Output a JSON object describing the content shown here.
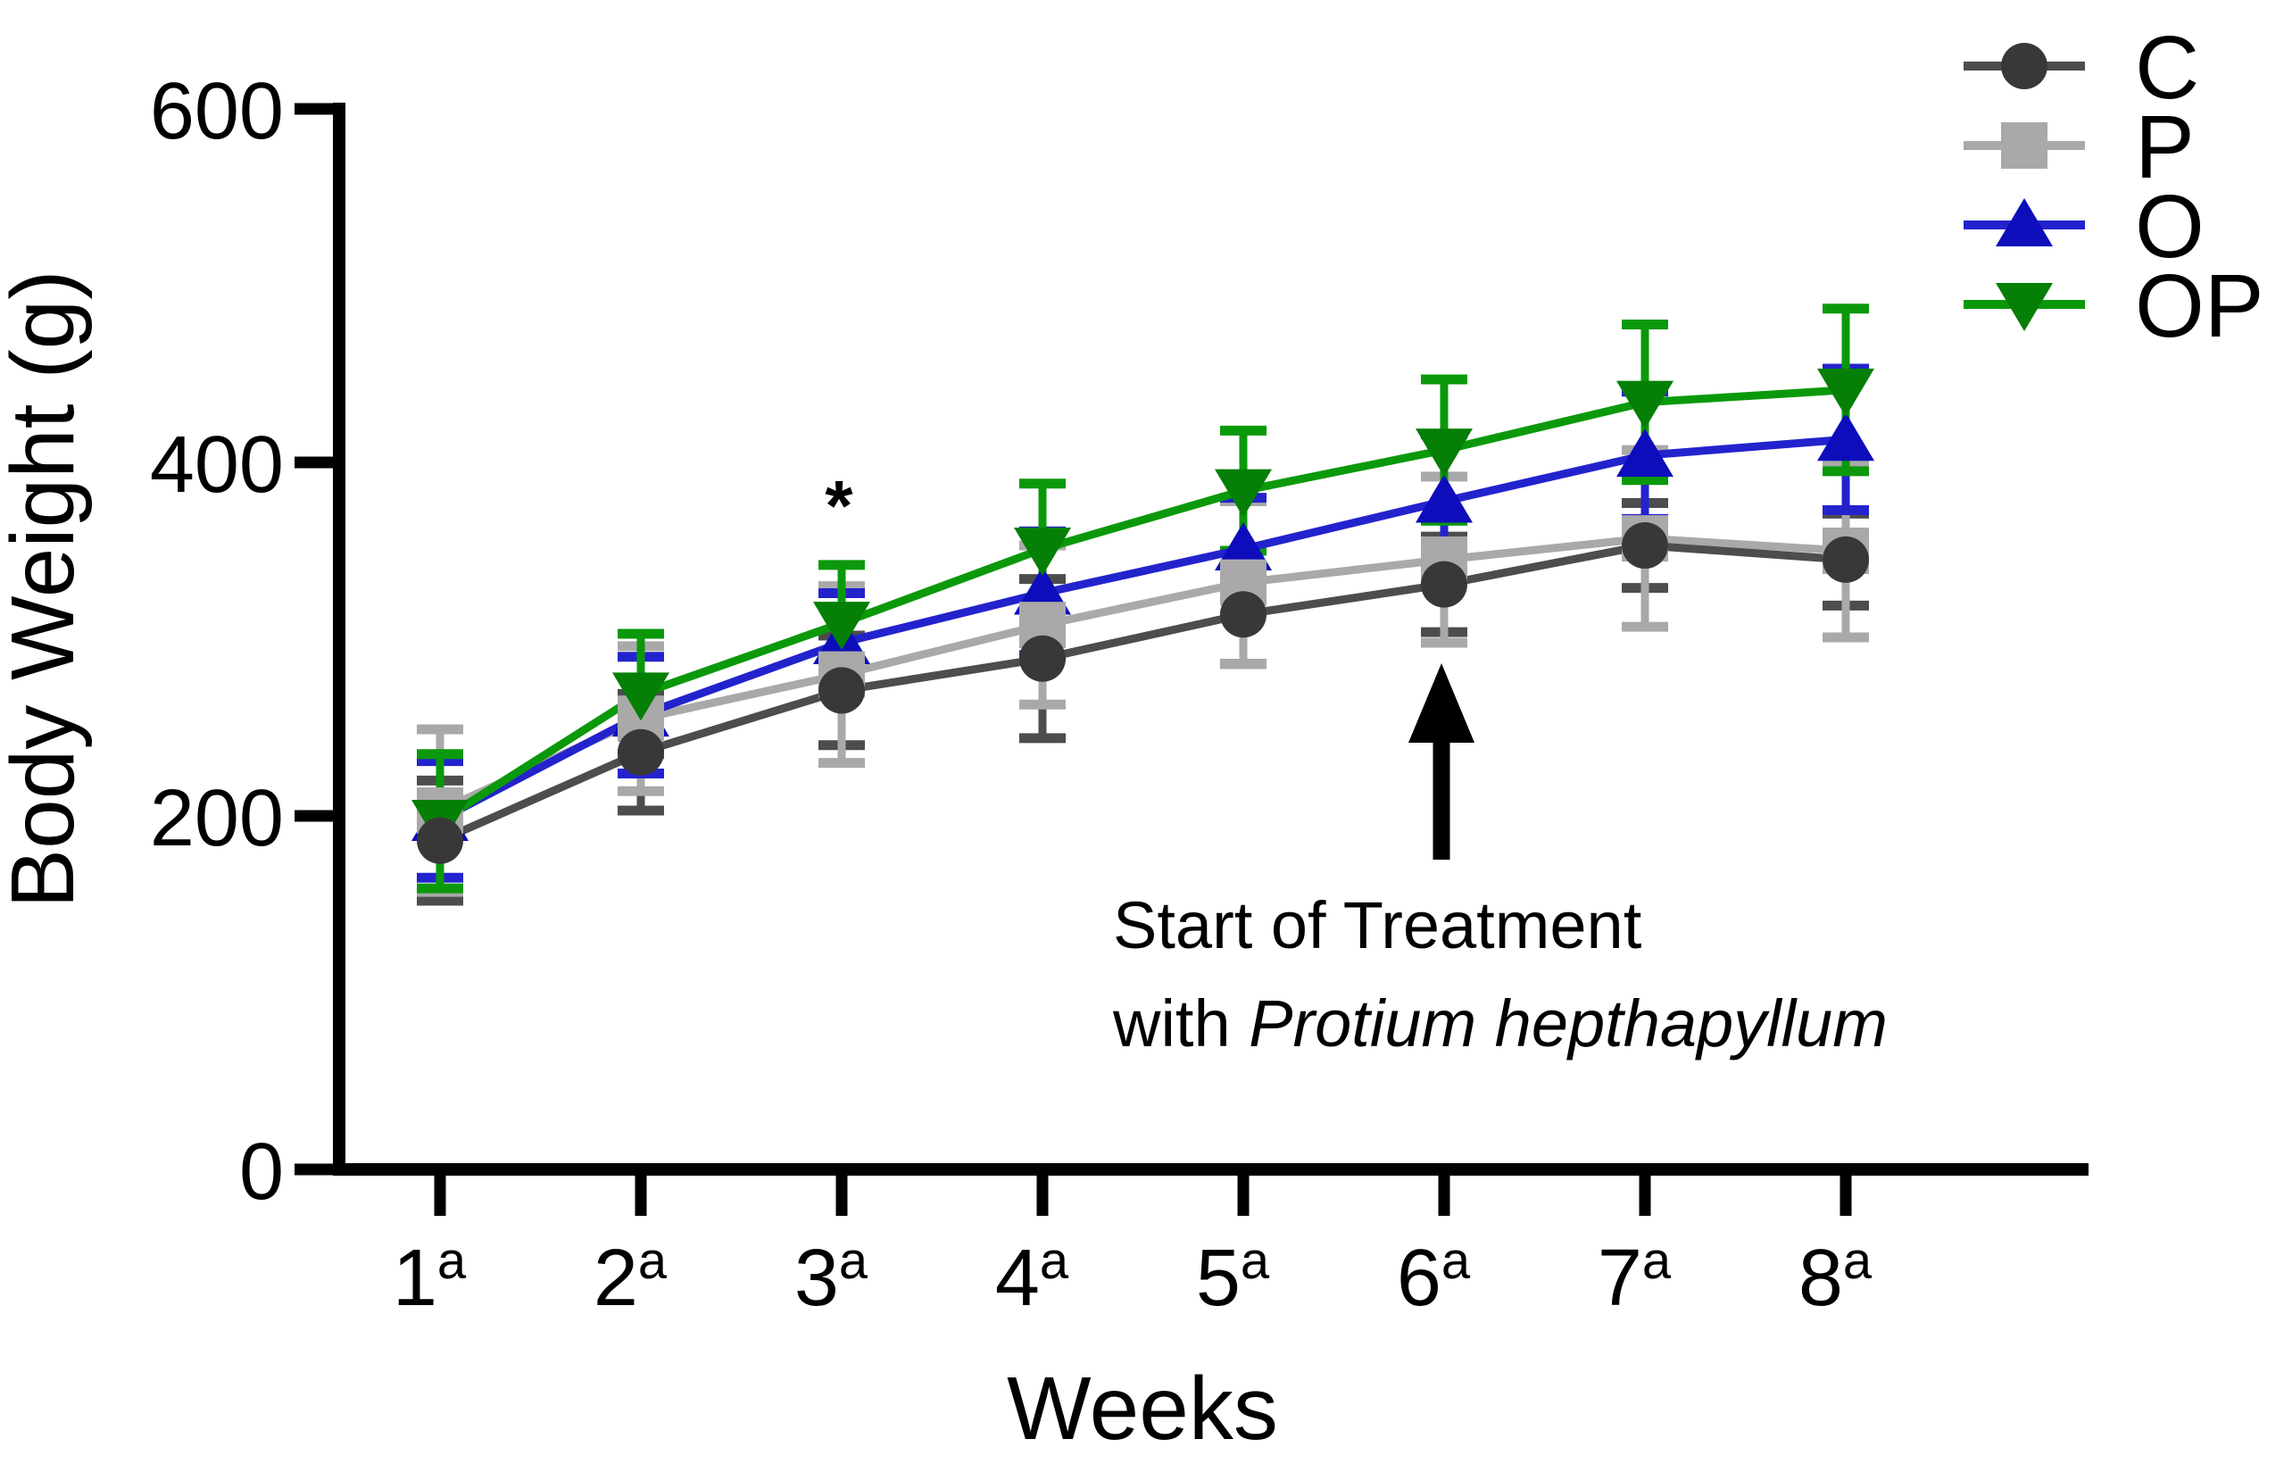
{
  "figure": {
    "background": "#ffffff",
    "axis_color": "#000000"
  },
  "y_axis": {
    "label": "Body Weight (g)",
    "tick_labels": [
      "0",
      "200",
      "400",
      "600"
    ],
    "ticks": [
      0,
      200,
      400,
      600
    ]
  },
  "x_axis": {
    "label": "Weeks",
    "tick_base": [
      "1",
      "2",
      "3",
      "4",
      "5",
      "6",
      "7",
      "8"
    ],
    "tick_superscript": "a"
  },
  "annotation": {
    "line1": "Start of Treatment",
    "line2_prefix": "with ",
    "line2_italic": "Protium hepthapyllum"
  },
  "significance": {
    "label": "*",
    "week": 3
  },
  "arrow": {
    "meaning": "start-of-treatment-arrow",
    "week": 6
  },
  "legend": {
    "entries": [
      "C",
      "P",
      "O",
      "OP"
    ]
  },
  "chart_data": {
    "type": "line",
    "title": "",
    "xlabel": "Weeks",
    "ylabel": "Body Weight (g)",
    "x": [
      1,
      2,
      3,
      4,
      5,
      6,
      7,
      8
    ],
    "x_tick_labels": [
      "1a",
      "2a",
      "3a",
      "4a",
      "5a",
      "6a",
      "7a",
      "8a"
    ],
    "ylim": [
      0,
      600
    ],
    "y_ticks": [
      0,
      200,
      400,
      600
    ],
    "grid": false,
    "legend_position": "top-right",
    "error_bars": "sd, capped, both directions",
    "series": [
      {
        "name": "C",
        "marker": "circle",
        "line_color": "#4d4d4d",
        "marker_color": "#383838",
        "values": [
          186,
          236,
          271,
          289,
          314,
          331,
          353,
          345
        ],
        "sd": [
          34,
          33,
          31,
          45,
          28,
          27,
          24,
          26
        ]
      },
      {
        "name": "P",
        "marker": "square",
        "line_color": "#a9a9a9",
        "marker_color": "#a9a9a9",
        "values": [
          203,
          255,
          280,
          308,
          332,
          345,
          357,
          350
        ],
        "sd": [
          46,
          41,
          50,
          45,
          46,
          47,
          50,
          49
        ]
      },
      {
        "name": "O",
        "marker": "triangle-up",
        "line_color": "#2323cd",
        "marker_color": "#0d0dbb",
        "values": [
          198,
          257,
          298,
          326,
          351,
          378,
          404,
          413
        ],
        "sd": [
          33,
          33,
          28,
          35,
          29,
          38,
          36,
          40
        ]
      },
      {
        "name": "OP",
        "marker": "triangle-down",
        "line_color": "#0b990b",
        "marker_color": "#067f06",
        "values": [
          197,
          269,
          309,
          351,
          384,
          407,
          434,
          441
        ],
        "sd": [
          38,
          34,
          33,
          37,
          34,
          40,
          44,
          46
        ]
      }
    ],
    "annotations": {
      "significance_label": "*",
      "significance_week": 3,
      "arrow_week": 6,
      "arrow_text": "Start of Treatment with Protium hepthapyllum"
    }
  }
}
